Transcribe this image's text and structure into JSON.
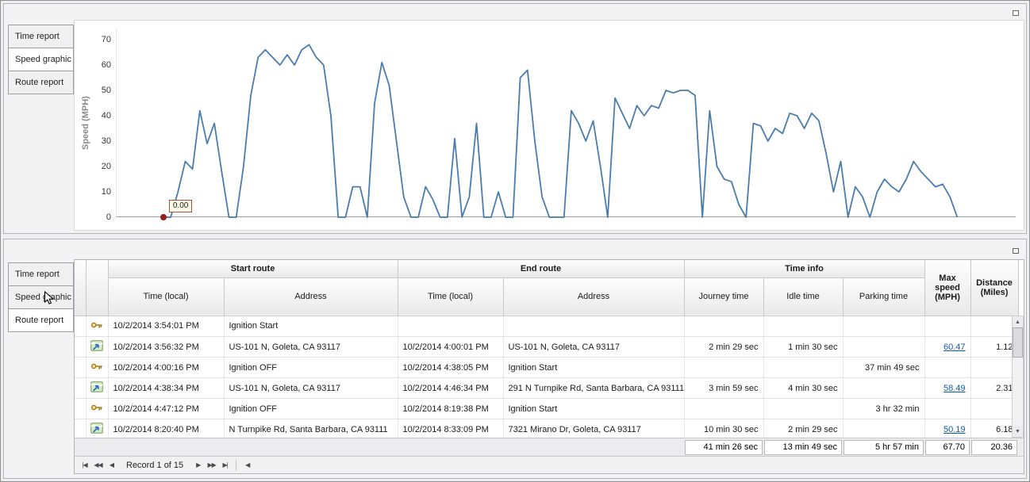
{
  "colors": {
    "chart_line": "#4a7cad",
    "marker": "#9b1b1b",
    "link": "#0e5bb5"
  },
  "top_panel": {
    "tabs": [
      {
        "label": "Time report",
        "selected": false
      },
      {
        "label": "Speed graphic",
        "selected": true
      },
      {
        "label": "Route report",
        "selected": false
      }
    ]
  },
  "chart_data": {
    "type": "line",
    "title": "",
    "xlabel": "",
    "ylabel": "Speed (MPH)",
    "ylim": [
      0,
      70
    ],
    "yticks": [
      0,
      10,
      20,
      30,
      40,
      50,
      60,
      70
    ],
    "grid": false,
    "legend": false,
    "start_label": "0.00",
    "x_range": [
      0.052,
      0.935
    ],
    "series_name": "Speed (MPH)",
    "values": [
      0,
      0,
      10,
      22,
      19,
      42,
      29,
      37,
      18,
      0,
      0,
      20,
      48,
      63,
      66,
      63,
      60,
      64,
      60,
      66,
      68,
      63,
      60,
      40,
      0,
      0,
      12,
      12,
      0,
      45,
      61,
      52,
      30,
      8,
      0,
      0,
      12,
      7,
      0,
      0,
      31,
      0,
      8,
      37,
      0,
      0,
      10,
      0,
      0,
      55,
      58,
      30,
      8,
      0,
      0,
      0,
      42,
      37,
      30,
      38,
      20,
      0,
      47,
      41,
      35,
      44,
      40,
      44,
      43,
      50,
      49,
      50,
      50,
      48,
      0,
      42,
      20,
      15,
      14,
      5,
      0,
      37,
      36,
      30,
      35,
      33,
      41,
      40,
      35,
      41,
      38,
      25,
      10,
      22,
      0,
      12,
      8,
      0,
      10,
      15,
      12,
      10,
      15,
      22,
      18,
      15,
      12,
      13,
      8,
      0
    ]
  },
  "bottom_panel": {
    "tabs": [
      {
        "label": "Time report",
        "selected": false
      },
      {
        "label": "Speed graphic",
        "selected": false
      },
      {
        "label": "Route report",
        "selected": true
      }
    ],
    "table": {
      "groups": [
        "Start route",
        "End route",
        "Time info"
      ],
      "columns": [
        "Time (local)",
        "Address",
        "Time (local)",
        "Address",
        "Journey time",
        "Idle time",
        "Parking time",
        "Max speed (MPH)",
        "Distance (Miles)"
      ],
      "rows": [
        {
          "icon": "key",
          "cells": [
            "10/2/2014 3:54:01 PM",
            "Ignition Start",
            "",
            "",
            "",
            "",
            "",
            "",
            ""
          ]
        },
        {
          "icon": "route",
          "cells": [
            "10/2/2014 3:56:32 PM",
            "US-101 N, Goleta, CA 93117",
            "10/2/2014 4:00:01 PM",
            "US-101 N, Goleta, CA 93117",
            "2 min 29 sec",
            "1 min 30 sec",
            "",
            "60.47",
            "1.12"
          ]
        },
        {
          "icon": "key",
          "cells": [
            "10/2/2014 4:00:16 PM",
            "Ignition OFF",
            "10/2/2014 4:38:05 PM",
            "Ignition Start",
            "",
            "",
            "37 min 49 sec",
            "",
            ""
          ]
        },
        {
          "icon": "route",
          "cells": [
            "10/2/2014 4:38:34 PM",
            "US-101 N, Goleta, CA 93117",
            "10/2/2014 4:46:34 PM",
            "291 N Turnpike Rd, Santa Barbara, CA 93111",
            "3 min 59 sec",
            "4 min 30 sec",
            "",
            "58.49",
            "2.31"
          ]
        },
        {
          "icon": "key",
          "cells": [
            "10/2/2014 4:47:12 PM",
            "Ignition OFF",
            "10/2/2014 8:19:38 PM",
            "Ignition Start",
            "",
            "",
            "3 hr 32 min",
            "",
            ""
          ]
        },
        {
          "icon": "route",
          "cells": [
            "10/2/2014 8:20:40 PM",
            "N Turnpike Rd, Santa Barbara, CA 93111",
            "10/2/2014 8:33:09 PM",
            "7321 Mirano Dr, Goleta, CA 93117",
            "10 min 30 sec",
            "2 min 29 sec",
            "",
            "50.19",
            "6.18"
          ]
        }
      ],
      "summary": [
        "41 min 26 sec",
        "13 min 49 sec",
        "5 hr 57 min",
        "67.70",
        "20.36"
      ]
    },
    "pager": {
      "first_glyph": "|◀",
      "prev_page_glyph": "◀◀",
      "prev_glyph": "◀",
      "label": "Record 1 of 15",
      "next_glyph": "▶",
      "next_page_glyph": "▶▶",
      "last_glyph": "▶|",
      "hscroll_left_glyph": "◀"
    },
    "scrollbar": {
      "up_glyph": "▲",
      "down_glyph": "▼"
    }
  }
}
